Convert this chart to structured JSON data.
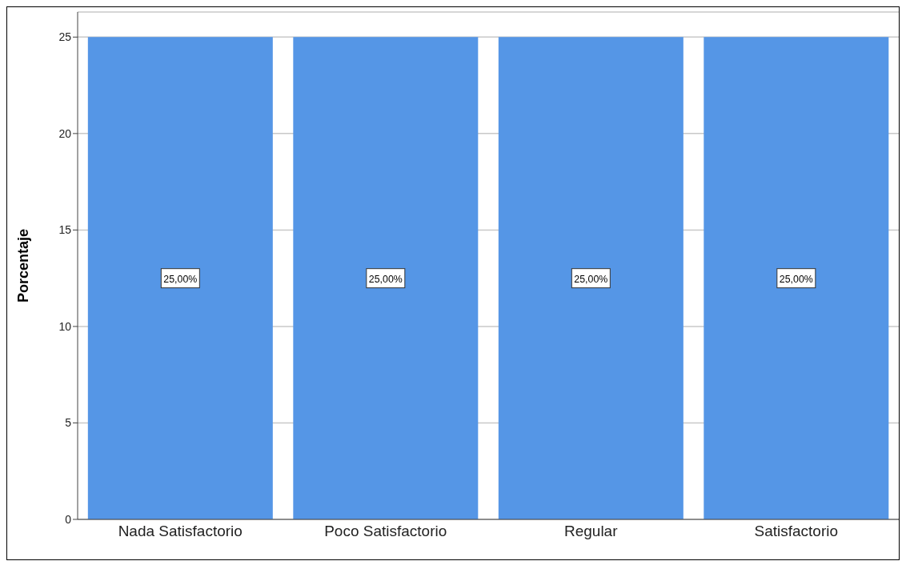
{
  "chart_data": {
    "type": "bar",
    "ylabel": "Porcentaje",
    "categories": [
      "Nada Satisfactorio",
      "Poco Satisfactorio",
      "Regular",
      "Satisfactorio"
    ],
    "values": [
      25,
      25,
      25,
      25
    ],
    "value_labels": [
      "25,00%",
      "25,00%",
      "25,00%",
      "25,00%"
    ],
    "color": "#5596e6",
    "ylim": [
      0,
      26.3
    ],
    "yticks": [
      0,
      5,
      10,
      15,
      20,
      25
    ],
    "grid": "y"
  }
}
